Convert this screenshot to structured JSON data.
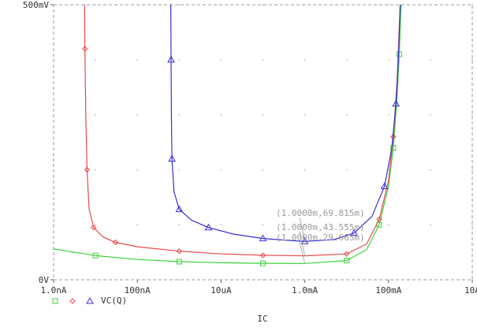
{
  "chart_data": {
    "type": "line",
    "title": "",
    "xlabel": "IC",
    "ylabel": "",
    "x_scale": "log",
    "xlim_A": [
      1e-09,
      10
    ],
    "ylim_mV": [
      0,
      500
    ],
    "x_ticks": [
      "1.0nA",
      "100nA",
      "10uA",
      "1.0mA",
      "100mA",
      "10A"
    ],
    "y_ticks": [
      "0V",
      "500mV"
    ],
    "grid": "dotted",
    "series": [
      {
        "name": "",
        "color": "#3cd23c",
        "marker": "square",
        "points": [
          [
            1e-09,
            56
          ],
          [
            1e-08,
            44
          ],
          [
            1e-07,
            37
          ],
          [
            1e-06,
            33
          ],
          [
            1e-05,
            31
          ],
          [
            0.0001,
            30
          ],
          [
            0.001,
            29.7
          ],
          [
            0.01,
            35
          ],
          [
            0.03,
            55
          ],
          [
            0.06,
            100
          ],
          [
            0.1,
            170
          ],
          [
            0.13,
            240
          ],
          [
            0.16,
            330
          ],
          [
            0.18,
            410
          ],
          [
            0.2,
            500
          ]
        ]
      },
      {
        "name": "",
        "color": "#e84a4a",
        "marker": "diamond",
        "points": [
          [
            5.5e-09,
            500
          ],
          [
            5.6e-09,
            420
          ],
          [
            5.9e-09,
            290
          ],
          [
            6.3e-09,
            200
          ],
          [
            7e-09,
            130
          ],
          [
            9e-09,
            95
          ],
          [
            1.5e-08,
            78
          ],
          [
            3e-08,
            68
          ],
          [
            1e-07,
            60
          ],
          [
            1e-06,
            52
          ],
          [
            1e-05,
            47
          ],
          [
            0.0001,
            44.5
          ],
          [
            0.001,
            43.6
          ],
          [
            0.01,
            47
          ],
          [
            0.03,
            65
          ],
          [
            0.06,
            110
          ],
          [
            0.1,
            180
          ],
          [
            0.13,
            260
          ],
          [
            0.16,
            360
          ],
          [
            0.19,
            500
          ]
        ]
      },
      {
        "name": "VC(Q)",
        "color": "#3a2fd6",
        "marker": "triangle",
        "points": [
          [
            6.3e-07,
            500
          ],
          [
            6.4e-07,
            400
          ],
          [
            6.5e-07,
            300
          ],
          [
            6.7e-07,
            220
          ],
          [
            7.5e-07,
            160
          ],
          [
            1e-06,
            128
          ],
          [
            2e-06,
            108
          ],
          [
            5e-06,
            95
          ],
          [
            2e-05,
            83
          ],
          [
            0.0001,
            75
          ],
          [
            0.0005,
            71
          ],
          [
            0.001,
            69.8
          ],
          [
            0.005,
            73
          ],
          [
            0.015,
            85
          ],
          [
            0.04,
            115
          ],
          [
            0.08,
            170
          ],
          [
            0.12,
            240
          ],
          [
            0.15,
            320
          ],
          [
            0.17,
            390
          ],
          [
            0.19,
            500
          ]
        ]
      }
    ],
    "annotations": [
      {
        "text": "(1.0000m,69.815m)",
        "x": 0.001,
        "y": 69.815,
        "color": "#9a9a9a"
      },
      {
        "text": "(1.0000m,43.555m)",
        "x": 0.001,
        "y": 43.555,
        "color": "#9a9a9a"
      },
      {
        "text": "(1.0000m,29.665m)",
        "x": 0.001,
        "y": 29.665,
        "color": "#9a9a9a"
      }
    ]
  }
}
